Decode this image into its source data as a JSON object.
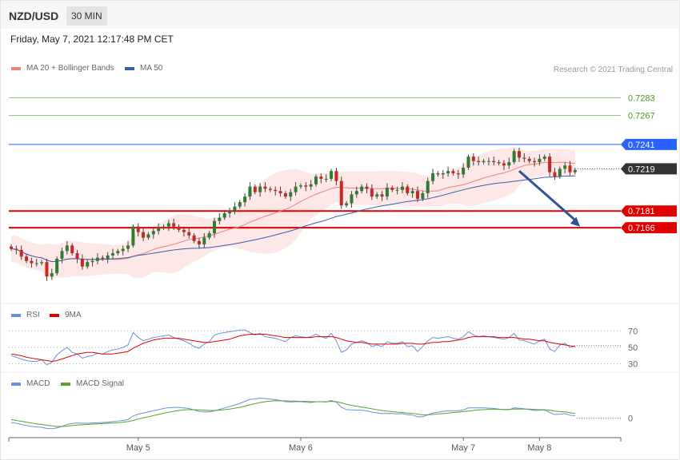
{
  "header": {
    "pair": "NZD/USD",
    "timeframe": "30 MIN"
  },
  "datetime": "Friday, May 7, 2021 12:17:48 PM CET",
  "credit": "Research © 2021 Trading Central",
  "colors": {
    "bull": "#2e7d32",
    "bear": "#c62828",
    "ma20": "#f08080",
    "ma50": "#3a5ea8",
    "band": "#fde3e3",
    "target": "#e00000",
    "pivot": "#2962ff",
    "green": "#8dc26b",
    "price": "#333333",
    "rsi": "#6b8fd9",
    "rsi_ma": "#e00000",
    "macd": "#6b8fd9",
    "signal": "#5aa02c"
  },
  "chart_data": [
    {
      "type": "candlestick",
      "panel": "price",
      "legend": [
        {
          "name": "MA 20 + Bollinger Bands"
        },
        {
          "name": "MA 50"
        }
      ],
      "ylim": [
        0.7115,
        0.7302
      ],
      "levels": [
        {
          "value": "0.7283",
          "kind": "green"
        },
        {
          "value": "0.7267",
          "kind": "green"
        },
        {
          "value": "0.7241",
          "kind": "pivot"
        },
        {
          "value": "0.7219",
          "kind": "price"
        },
        {
          "value": "0.7181",
          "kind": "target"
        },
        {
          "value": "0.7166",
          "kind": "target"
        }
      ],
      "arrow": {
        "from": [
          100,
          0.7217
        ],
        "to": [
          112,
          0.7167
        ]
      },
      "x_start_date": "2021-05-04 12:00",
      "interval_minutes": 30,
      "closes": [
        0.7147,
        0.7146,
        0.714,
        0.7136,
        0.7134,
        0.7134,
        0.7135,
        0.7122,
        0.7125,
        0.7138,
        0.7145,
        0.715,
        0.7143,
        0.7138,
        0.7131,
        0.7135,
        0.7136,
        0.7139,
        0.7138,
        0.7141,
        0.7143,
        0.7145,
        0.7147,
        0.715,
        0.7167,
        0.7162,
        0.7157,
        0.716,
        0.7163,
        0.7166,
        0.7167,
        0.717,
        0.7167,
        0.7164,
        0.7162,
        0.7159,
        0.7154,
        0.7151,
        0.7157,
        0.7161,
        0.7172,
        0.7175,
        0.7179,
        0.7181,
        0.7185,
        0.7189,
        0.7194,
        0.7203,
        0.7198,
        0.7203,
        0.7201,
        0.72,
        0.7199,
        0.7197,
        0.7194,
        0.7198,
        0.7203,
        0.7204,
        0.7203,
        0.7205,
        0.7212,
        0.721,
        0.721,
        0.7217,
        0.7208,
        0.7186,
        0.7188,
        0.7196,
        0.7199,
        0.7203,
        0.7201,
        0.7194,
        0.7196,
        0.7194,
        0.7202,
        0.72,
        0.72,
        0.7203,
        0.7197,
        0.7199,
        0.7192,
        0.7197,
        0.7208,
        0.7215,
        0.7214,
        0.7215,
        0.7217,
        0.7215,
        0.7214,
        0.722,
        0.723,
        0.7226,
        0.7225,
        0.7226,
        0.7226,
        0.7225,
        0.7224,
        0.7222,
        0.7225,
        0.7235,
        0.7229,
        0.7228,
        0.7226,
        0.7225,
        0.7228,
        0.723,
        0.7216,
        0.7212,
        0.7219,
        0.7222,
        0.7216,
        0.7218
      ]
    },
    {
      "type": "line",
      "panel": "rsi",
      "legend": [
        {
          "name": "RSI"
        },
        {
          "name": "9MA"
        }
      ],
      "ylim": [
        20,
        80
      ],
      "ticks": [
        "70",
        "50",
        "30"
      ],
      "tick_values": [
        70,
        50,
        30
      ],
      "series": [
        {
          "name": "RSI",
          "values": [
            40,
            38,
            36,
            34,
            33,
            33,
            35,
            29,
            32,
            41,
            46,
            50,
            44,
            42,
            37,
            39,
            40,
            43,
            42,
            45,
            47,
            48,
            50,
            53,
            68,
            62,
            58,
            60,
            62,
            63,
            64,
            65,
            62,
            60,
            58,
            55,
            51,
            49,
            54,
            57,
            65,
            67,
            68,
            69,
            70,
            71,
            71,
            68,
            65,
            67,
            63,
            62,
            61,
            59,
            57,
            62,
            64,
            63,
            62,
            63,
            66,
            63,
            61,
            67,
            58,
            44,
            47,
            54,
            56,
            58,
            56,
            51,
            53,
            51,
            57,
            55,
            55,
            57,
            51,
            52,
            45,
            51,
            58,
            62,
            61,
            62,
            63,
            61,
            60,
            63,
            69,
            65,
            63,
            64,
            63,
            62,
            61,
            60,
            62,
            67,
            59,
            58,
            56,
            54,
            58,
            60,
            48,
            45,
            53,
            55,
            50,
            52
          ]
        },
        {
          "name": "9MA",
          "values": [
            42,
            41,
            40,
            38,
            37,
            36,
            35,
            34,
            33,
            34,
            36,
            38,
            40,
            42,
            43,
            44,
            44,
            43,
            42,
            42,
            42,
            43,
            44,
            45,
            49,
            52,
            55,
            57,
            59,
            60,
            61,
            61,
            61,
            61,
            60,
            59,
            58,
            57,
            56,
            56,
            57,
            58,
            59,
            60,
            62,
            64,
            65,
            66,
            66,
            66,
            66,
            65,
            64,
            63,
            62,
            62,
            62,
            62,
            62,
            62,
            63,
            63,
            63,
            63,
            62,
            60,
            58,
            57,
            56,
            56,
            55,
            54,
            54,
            54,
            54,
            54,
            54,
            55,
            55,
            55,
            54,
            54,
            55,
            56,
            56,
            57,
            57,
            58,
            59,
            60,
            62,
            63,
            63,
            63,
            63,
            63,
            62,
            62,
            62,
            62,
            61,
            60,
            60,
            59,
            58,
            58,
            56,
            55,
            54,
            53,
            52,
            51
          ]
        }
      ]
    },
    {
      "type": "line",
      "panel": "macd",
      "legend": [
        {
          "name": "MACD"
        },
        {
          "name": "MACD Signal"
        }
      ],
      "ylim": [
        -0.0006,
        0.001
      ],
      "ticks": [
        "0"
      ],
      "tick_values": [
        0
      ],
      "series": [
        {
          "name": "MACD",
          "values": [
            -0.00015,
            -0.00018,
            -0.00022,
            -0.00026,
            -0.00029,
            -0.00031,
            -0.00032,
            -0.00036,
            -0.00037,
            -0.00034,
            -0.00029,
            -0.00022,
            -0.00019,
            -0.00017,
            -0.00018,
            -0.00018,
            -0.00017,
            -0.00016,
            -0.00015,
            -0.00014,
            -0.00012,
            -0.0001,
            -8e-05,
            -5e-05,
            8e-05,
            0.00014,
            0.00018,
            0.00022,
            0.00026,
            0.0003,
            0.00034,
            0.00037,
            0.00038,
            0.00038,
            0.00036,
            0.00034,
            0.00029,
            0.00024,
            0.00022,
            0.00022,
            0.00026,
            0.00031,
            0.00036,
            0.00041,
            0.00046,
            0.00052,
            0.00059,
            0.00066,
            0.00068,
            0.0007,
            0.00069,
            0.00067,
            0.00065,
            0.00062,
            0.00058,
            0.00057,
            0.00058,
            0.00058,
            0.00056,
            0.00055,
            0.00058,
            0.00058,
            0.00057,
            0.00062,
            0.00056,
            0.00038,
            0.0003,
            0.00029,
            0.00028,
            0.00028,
            0.00026,
            0.00021,
            0.00019,
            0.00016,
            0.00017,
            0.00016,
            0.00015,
            0.00016,
            0.00012,
            0.00011,
            5e-05,
            5e-05,
            0.00012,
            0.00018,
            0.00021,
            0.00024,
            0.00026,
            0.00026,
            0.00026,
            0.00029,
            0.00036,
            0.00036,
            0.00036,
            0.00036,
            0.00035,
            0.00034,
            0.00032,
            0.0003,
            0.0003,
            0.00036,
            0.00035,
            0.00033,
            0.0003,
            0.00027,
            0.00028,
            0.00029,
            0.0002,
            0.00013,
            0.00014,
            0.00016,
            0.0001,
            9e-05
          ]
        },
        {
          "name": "MACD Signal",
          "values": [
            -5e-05,
            -8e-05,
            -0.00011,
            -0.00014,
            -0.00017,
            -0.0002,
            -0.00022,
            -0.00025,
            -0.00027,
            -0.00029,
            -0.00029,
            -0.00028,
            -0.00026,
            -0.00024,
            -0.00023,
            -0.00022,
            -0.00021,
            -0.0002,
            -0.00019,
            -0.00018,
            -0.00017,
            -0.00016,
            -0.00014,
            -0.00012,
            -8e-05,
            -3e-05,
            1e-05,
            5e-05,
            9e-05,
            0.00013,
            0.00017,
            0.00021,
            0.00024,
            0.00027,
            0.00029,
            0.0003,
            0.0003,
            0.00029,
            0.00028,
            0.00027,
            0.00027,
            0.00028,
            0.0003,
            0.00032,
            0.00035,
            0.00038,
            0.00042,
            0.00047,
            0.00051,
            0.00055,
            0.00058,
            0.0006,
            0.00061,
            0.00061,
            0.00061,
            0.0006,
            0.0006,
            0.00059,
            0.00059,
            0.00058,
            0.00058,
            0.00058,
            0.00058,
            0.00059,
            0.00058,
            0.00054,
            0.00049,
            0.00045,
            0.00042,
            0.00039,
            0.00036,
            0.00033,
            0.0003,
            0.00027,
            0.00025,
            0.00023,
            0.00021,
            0.0002,
            0.00018,
            0.00017,
            0.00014,
            0.00012,
            0.00012,
            0.00013,
            0.00015,
            0.00016,
            0.00018,
            0.0002,
            0.00021,
            0.00023,
            0.00025,
            0.00027,
            0.00029,
            0.0003,
            0.00031,
            0.00031,
            0.00031,
            0.00031,
            0.00031,
            0.00032,
            0.00032,
            0.00032,
            0.00032,
            0.00031,
            0.0003,
            0.0003,
            0.00028,
            0.00025,
            0.00023,
            0.00022,
            0.00019,
            0.00017
          ]
        }
      ]
    }
  ],
  "xaxis": {
    "ticks": [
      {
        "label": "May 5",
        "index": 25
      },
      {
        "label": "May 6",
        "index": 57
      },
      {
        "label": "May 7",
        "index": 89
      },
      {
        "label": "May 8",
        "index": 104
      }
    ]
  }
}
